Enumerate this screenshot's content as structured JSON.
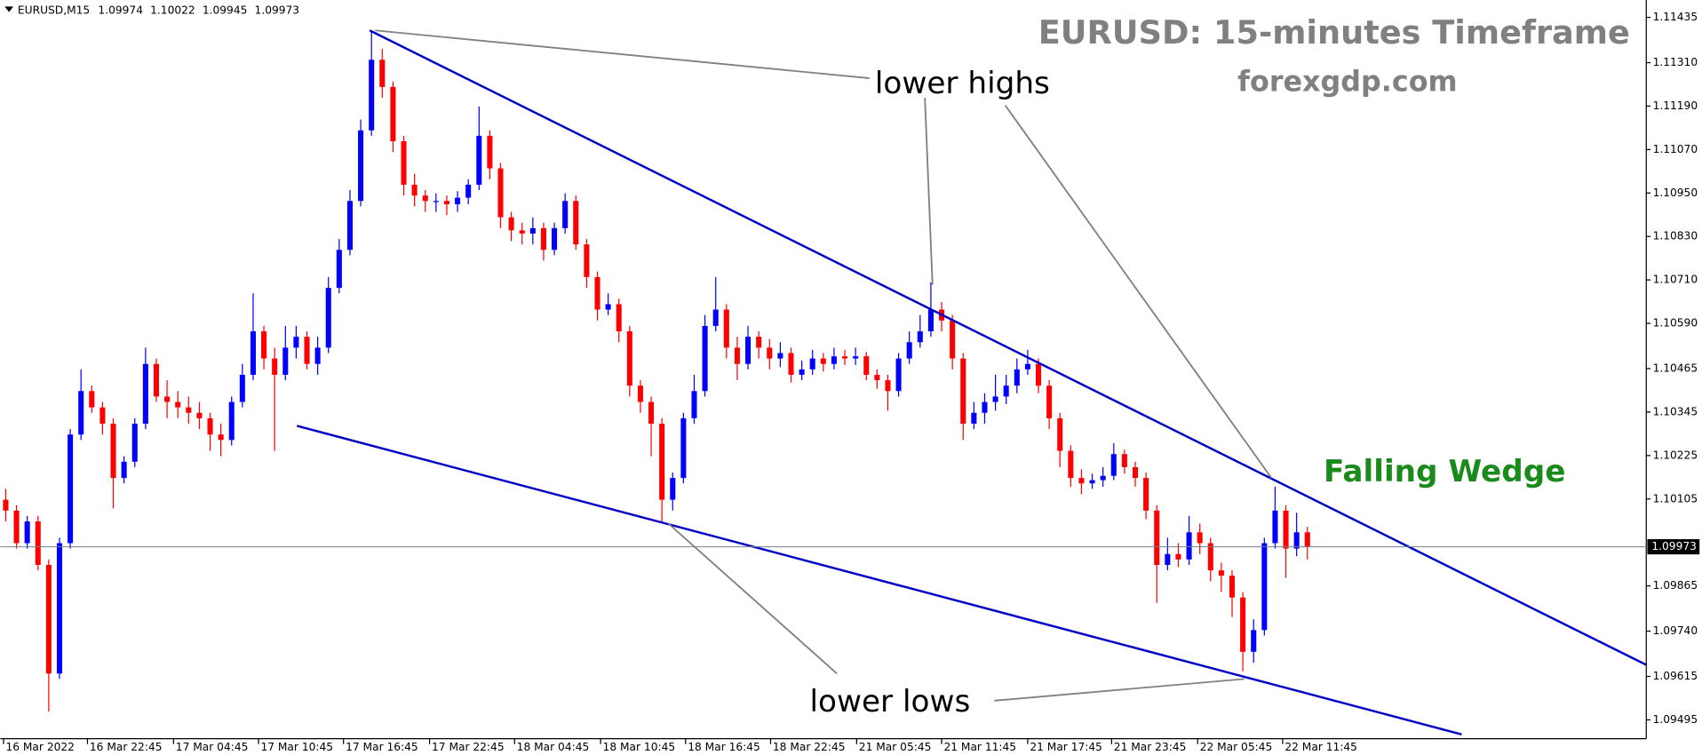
{
  "chart_data": {
    "type": "candlestick",
    "title": "EURUSD: 15-minutes Timeframe",
    "subtitle": "forexgdp.com",
    "symbol": "EURUSD,M15",
    "header_ohlc": [
      1.09974,
      1.10022,
      1.09945,
      1.09973
    ],
    "annotations": [
      "lower highs",
      "lower lows",
      "Falling Wedge"
    ],
    "up_color": "#0000ff",
    "down_color": "#ff0000",
    "current_price": 1.09973,
    "values": [
      [
        1.10103,
        1.10133,
        1.10043,
        1.10073
      ],
      [
        1.10073,
        1.10088,
        1.09968,
        1.09983
      ],
      [
        1.09983,
        1.10058,
        1.09968,
        1.10043
      ],
      [
        1.10043,
        1.10058,
        1.09908,
        1.09923
      ],
      [
        1.09923,
        1.09938,
        1.09518,
        1.09623
      ],
      [
        1.09623,
        1.09998,
        1.09608,
        1.09983
      ],
      [
        1.09983,
        1.10298,
        1.09968,
        1.10283
      ],
      [
        1.10283,
        1.10463,
        1.10268,
        1.10403
      ],
      [
        1.10403,
        1.10418,
        1.10343,
        1.10358
      ],
      [
        1.10358,
        1.10373,
        1.10283,
        1.10313
      ],
      [
        1.10313,
        1.10328,
        1.10079,
        1.10163
      ],
      [
        1.10163,
        1.10223,
        1.10148,
        1.10208
      ],
      [
        1.10208,
        1.10328,
        1.10193,
        1.10313
      ],
      [
        1.10313,
        1.10523,
        1.10298,
        1.10478
      ],
      [
        1.10478,
        1.10493,
        1.10373,
        1.10388
      ],
      [
        1.10388,
        1.10433,
        1.10328,
        1.10373
      ],
      [
        1.10373,
        1.10403,
        1.10328,
        1.10358
      ],
      [
        1.10358,
        1.10388,
        1.10313,
        1.10343
      ],
      [
        1.10343,
        1.10373,
        1.10298,
        1.10328
      ],
      [
        1.10328,
        1.10343,
        1.10238,
        1.10283
      ],
      [
        1.10283,
        1.10313,
        1.10223,
        1.10268
      ],
      [
        1.10268,
        1.10388,
        1.10253,
        1.10373
      ],
      [
        1.10373,
        1.10478,
        1.10358,
        1.10448
      ],
      [
        1.10448,
        1.10673,
        1.10433,
        1.10568
      ],
      [
        1.10568,
        1.10583,
        1.10463,
        1.10493
      ],
      [
        1.10493,
        1.10523,
        1.10238,
        1.10448
      ],
      [
        1.10448,
        1.10583,
        1.10433,
        1.10523
      ],
      [
        1.10523,
        1.10583,
        1.10493,
        1.10553
      ],
      [
        1.10553,
        1.10568,
        1.10463,
        1.10478
      ],
      [
        1.10478,
        1.10553,
        1.10448,
        1.10523
      ],
      [
        1.10523,
        1.10718,
        1.10508,
        1.10688
      ],
      [
        1.10688,
        1.10823,
        1.10673,
        1.10793
      ],
      [
        1.10793,
        1.10958,
        1.10778,
        1.10928
      ],
      [
        1.10928,
        1.11153,
        1.10913,
        1.11123
      ],
      [
        1.11123,
        1.11399,
        1.11108,
        1.11318
      ],
      [
        1.11318,
        1.11348,
        1.11213,
        1.11243
      ],
      [
        1.11243,
        1.11258,
        1.11063,
        1.11093
      ],
      [
        1.11093,
        1.11108,
        1.10943,
        1.10973
      ],
      [
        1.10973,
        1.11003,
        1.10913,
        1.10943
      ],
      [
        1.10943,
        1.10958,
        1.10898,
        1.10928
      ],
      [
        1.10928,
        1.10949,
        1.10898,
        1.10928
      ],
      [
        1.10928,
        1.10943,
        1.10889,
        1.10919
      ],
      [
        1.10919,
        1.10955,
        1.10898,
        1.10937
      ],
      [
        1.10937,
        1.10988,
        1.10919,
        1.10973
      ],
      [
        1.10973,
        1.11189,
        1.10958,
        1.11108
      ],
      [
        1.11108,
        1.11123,
        1.10988,
        1.11018
      ],
      [
        1.11018,
        1.11033,
        1.10853,
        1.10883
      ],
      [
        1.10883,
        1.10898,
        1.10817,
        1.10847
      ],
      [
        1.10847,
        1.10868,
        1.10808,
        1.10838
      ],
      [
        1.10838,
        1.10883,
        1.10808,
        1.10853
      ],
      [
        1.10853,
        1.10868,
        1.10763,
        1.10793
      ],
      [
        1.10793,
        1.10868,
        1.10778,
        1.10853
      ],
      [
        1.10853,
        1.10949,
        1.10838,
        1.10928
      ],
      [
        1.10928,
        1.10943,
        1.10793,
        1.10808
      ],
      [
        1.10808,
        1.10823,
        1.10688,
        1.10718
      ],
      [
        1.10718,
        1.10733,
        1.10598,
        1.10628
      ],
      [
        1.10628,
        1.10673,
        1.10613,
        1.10643
      ],
      [
        1.10643,
        1.10658,
        1.10538,
        1.10568
      ],
      [
        1.10568,
        1.10583,
        1.10388,
        1.10418
      ],
      [
        1.10418,
        1.10433,
        1.10343,
        1.10373
      ],
      [
        1.10373,
        1.10388,
        1.10223,
        1.10313
      ],
      [
        1.10313,
        1.10328,
        1.10043,
        1.10103
      ],
      [
        1.10103,
        1.10178,
        1.10073,
        1.10163
      ],
      [
        1.10163,
        1.10343,
        1.10148,
        1.10328
      ],
      [
        1.10328,
        1.10448,
        1.10313,
        1.10403
      ],
      [
        1.10403,
        1.10613,
        1.10388,
        1.10583
      ],
      [
        1.10583,
        1.10718,
        1.10568,
        1.10628
      ],
      [
        1.10628,
        1.10643,
        1.10493,
        1.10523
      ],
      [
        1.10523,
        1.10553,
        1.10433,
        1.10478
      ],
      [
        1.10478,
        1.10583,
        1.10463,
        1.10553
      ],
      [
        1.10553,
        1.10568,
        1.10493,
        1.10523
      ],
      [
        1.10523,
        1.10547,
        1.10463,
        1.10493
      ],
      [
        1.10493,
        1.10538,
        1.10469,
        1.10508
      ],
      [
        1.10508,
        1.10523,
        1.10427,
        1.10448
      ],
      [
        1.10448,
        1.10487,
        1.10433,
        1.10463
      ],
      [
        1.10463,
        1.10517,
        1.10448,
        1.10493
      ],
      [
        1.10493,
        1.10508,
        1.10457,
        1.10478
      ],
      [
        1.10478,
        1.10523,
        1.10463,
        1.10499
      ],
      [
        1.10499,
        1.10517,
        1.10475,
        1.10493
      ],
      [
        1.10493,
        1.10523,
        1.10475,
        1.10499
      ],
      [
        1.10499,
        1.10511,
        1.10433,
        1.10448
      ],
      [
        1.10448,
        1.10463,
        1.10409,
        1.10433
      ],
      [
        1.10433,
        1.10448,
        1.10349,
        1.10403
      ],
      [
        1.10403,
        1.10508,
        1.10388,
        1.10493
      ],
      [
        1.10493,
        1.10568,
        1.10478,
        1.10538
      ],
      [
        1.10538,
        1.10613,
        1.10523,
        1.10568
      ],
      [
        1.10568,
        1.10703,
        1.10553,
        1.10628
      ],
      [
        1.10628,
        1.10649,
        1.10568,
        1.10598
      ],
      [
        1.10598,
        1.10613,
        1.10463,
        1.10493
      ],
      [
        1.10493,
        1.10508,
        1.10268,
        1.10313
      ],
      [
        1.10313,
        1.10373,
        1.10298,
        1.10343
      ],
      [
        1.10343,
        1.10397,
        1.10313,
        1.10373
      ],
      [
        1.10373,
        1.10448,
        1.10349,
        1.10388
      ],
      [
        1.10388,
        1.10448,
        1.10367,
        1.10418
      ],
      [
        1.10418,
        1.10493,
        1.10397,
        1.10463
      ],
      [
        1.10463,
        1.10517,
        1.10448,
        1.10478
      ],
      [
        1.10478,
        1.10493,
        1.10397,
        1.10418
      ],
      [
        1.10418,
        1.10433,
        1.10298,
        1.10328
      ],
      [
        1.10328,
        1.10343,
        1.10193,
        1.10238
      ],
      [
        1.10238,
        1.10253,
        1.10139,
        1.10163
      ],
      [
        1.10163,
        1.10187,
        1.10118,
        1.10148
      ],
      [
        1.10148,
        1.10175,
        1.10133,
        1.10157
      ],
      [
        1.10157,
        1.10193,
        1.10139,
        1.10169
      ],
      [
        1.10169,
        1.10259,
        1.10157,
        1.10229
      ],
      [
        1.10229,
        1.10241,
        1.10175,
        1.10193
      ],
      [
        1.10193,
        1.10208,
        1.10139,
        1.10163
      ],
      [
        1.10163,
        1.10178,
        1.10049,
        1.10073
      ],
      [
        1.10073,
        1.10088,
        1.09818,
        1.09923
      ],
      [
        1.09923,
        1.09998,
        1.09908,
        1.09953
      ],
      [
        1.09953,
        1.09983,
        1.09917,
        1.09938
      ],
      [
        1.09938,
        1.10058,
        1.09923,
        1.10013
      ],
      [
        1.10013,
        1.10037,
        1.09953,
        1.09983
      ],
      [
        1.09983,
        1.09998,
        1.09878,
        1.09908
      ],
      [
        1.09908,
        1.09929,
        1.09848,
        1.09893
      ],
      [
        1.09893,
        1.09908,
        1.09779,
        1.09833
      ],
      [
        1.09833,
        1.09848,
        1.09629,
        1.09683
      ],
      [
        1.09683,
        1.09773,
        1.09653,
        1.09743
      ],
      [
        1.09743,
        1.09998,
        1.09728,
        1.09983
      ],
      [
        1.09983,
        1.10139,
        1.09968,
        1.10073
      ],
      [
        1.10073,
        1.10088,
        1.09887,
        1.09968
      ],
      [
        1.09968,
        1.10067,
        1.09947,
        1.10013
      ],
      [
        1.10013,
        1.10028,
        1.09938,
        1.09973
      ]
    ],
    "ylim": [
      1.09443,
      1.11483
    ],
    "yticks": [
      1.11435,
      {
        "value": 1.1131,
        "label": "1.11310"
      },
      {
        "value": 1.1119,
        "label": "1.11190"
      },
      {
        "value": 1.1107,
        "label": "1.11070"
      },
      {
        "value": 1.1095,
        "label": "1.10950"
      },
      {
        "value": 1.1083,
        "label": "1.10830"
      },
      {
        "value": 1.1071,
        "label": "1.10710"
      },
      {
        "value": 1.1059,
        "label": "1.10590"
      },
      1.10465,
      1.10345,
      1.10225,
      1.10105,
      1.09865,
      {
        "value": 1.0974,
        "label": "1.09740"
      },
      1.09615,
      1.09495
    ],
    "xlim": [
      -0.5,
      152.5
    ],
    "xticks": [
      {
        "value": -0.2,
        "label": "16 Mar 2022"
      },
      {
        "value": 7.6,
        "label": "16 Mar 22:45"
      },
      {
        "value": 15.6,
        "label": "17 Mar 04:45"
      },
      {
        "value": 23.5,
        "label": "17 Mar 10:45"
      },
      {
        "value": 31.4,
        "label": "17 Mar 16:45"
      },
      {
        "value": 39.4,
        "label": "17 Mar 22:45"
      },
      {
        "value": 47.3,
        "label": "18 Mar 04:45"
      },
      {
        "value": 55.3,
        "label": "18 Mar 10:45"
      },
      {
        "value": 63.2,
        "label": "18 Mar 16:45"
      },
      {
        "value": 71.1,
        "label": "18 Mar 22:45"
      },
      {
        "value": 79.1,
        "label": "21 Mar 05:45"
      },
      {
        "value": 87,
        "label": "21 Mar 11:45"
      },
      {
        "value": 95,
        "label": "21 Mar 17:45"
      },
      {
        "value": 102.8,
        "label": "21 Mar 23:45"
      },
      {
        "value": 110.8,
        "label": "22 Mar 05:45"
      },
      {
        "value": 118.7,
        "label": "22 Mar 11:45"
      }
    ]
  }
}
